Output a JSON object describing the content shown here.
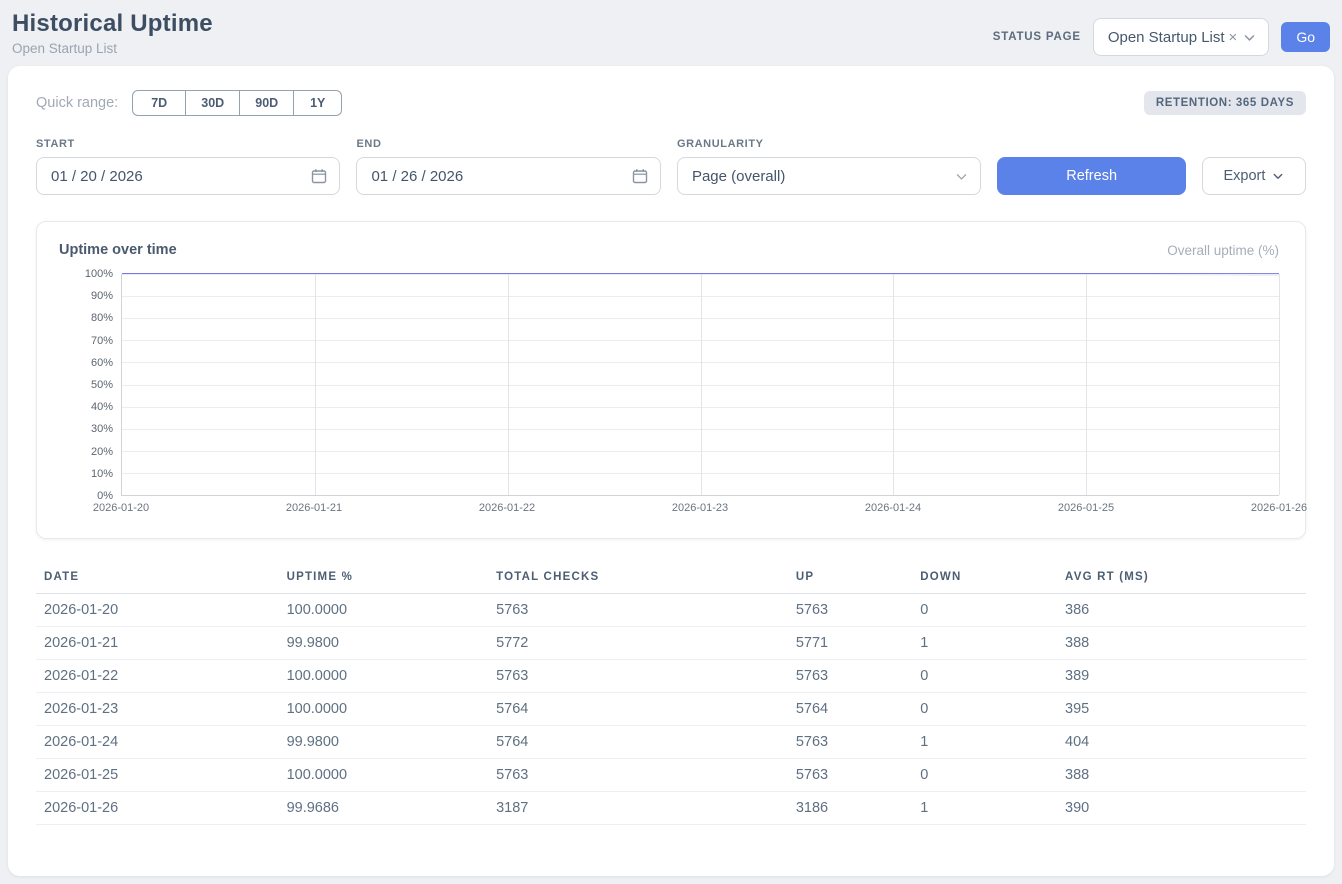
{
  "header": {
    "title": "Historical Uptime",
    "subtitle": "Open Startup List",
    "status_page_label": "STATUS PAGE",
    "status_page_value": "Open Startup List",
    "status_page_clear": "×",
    "go_label": "Go"
  },
  "controls": {
    "quick_range_label": "Quick range:",
    "quick_ranges": [
      "7D",
      "30D",
      "90D",
      "1Y"
    ],
    "retention_badge": "RETENTION: 365 DAYS",
    "start_label": "START",
    "start_value": "01 / 20 / 2026",
    "end_label": "END",
    "end_value": "01 / 26 / 2026",
    "granularity_label": "GRANULARITY",
    "granularity_value": "Page (overall)",
    "refresh_label": "Refresh",
    "export_label": "Export"
  },
  "chart": {
    "title": "Uptime over time",
    "legend": "Overall uptime (%)"
  },
  "chart_data": {
    "type": "line",
    "title": "Uptime over time",
    "x": [
      "2026-01-20",
      "2026-01-21",
      "2026-01-22",
      "2026-01-23",
      "2026-01-24",
      "2026-01-25",
      "2026-01-26"
    ],
    "series": [
      {
        "name": "Overall uptime (%)",
        "values": [
          100.0,
          99.98,
          100.0,
          100.0,
          99.98,
          100.0,
          99.9686
        ]
      }
    ],
    "xlabel": "",
    "ylabel": "",
    "ylim": [
      0,
      100
    ],
    "yticks": [
      "0%",
      "10%",
      "20%",
      "30%",
      "40%",
      "50%",
      "60%",
      "70%",
      "80%",
      "90%",
      "100%"
    ],
    "grid": true,
    "legend_position": "top-right",
    "line_color": "#7279e6"
  },
  "table": {
    "columns": [
      "DATE",
      "UPTIME %",
      "TOTAL CHECKS",
      "UP",
      "DOWN",
      "AVG RT (MS)"
    ],
    "rows": [
      [
        "2026-01-20",
        "100.0000",
        "5763",
        "5763",
        "0",
        "386"
      ],
      [
        "2026-01-21",
        "99.9800",
        "5772",
        "5771",
        "1",
        "388"
      ],
      [
        "2026-01-22",
        "100.0000",
        "5763",
        "5763",
        "0",
        "389"
      ],
      [
        "2026-01-23",
        "100.0000",
        "5764",
        "5764",
        "0",
        "395"
      ],
      [
        "2026-01-24",
        "99.9800",
        "5764",
        "5763",
        "1",
        "404"
      ],
      [
        "2026-01-25",
        "100.0000",
        "5763",
        "5763",
        "0",
        "388"
      ],
      [
        "2026-01-26",
        "99.9686",
        "3187",
        "3186",
        "1",
        "390"
      ]
    ]
  },
  "colors": {
    "accent": "#5b82e8",
    "line": "#7279e6",
    "grid": "#ececee"
  }
}
